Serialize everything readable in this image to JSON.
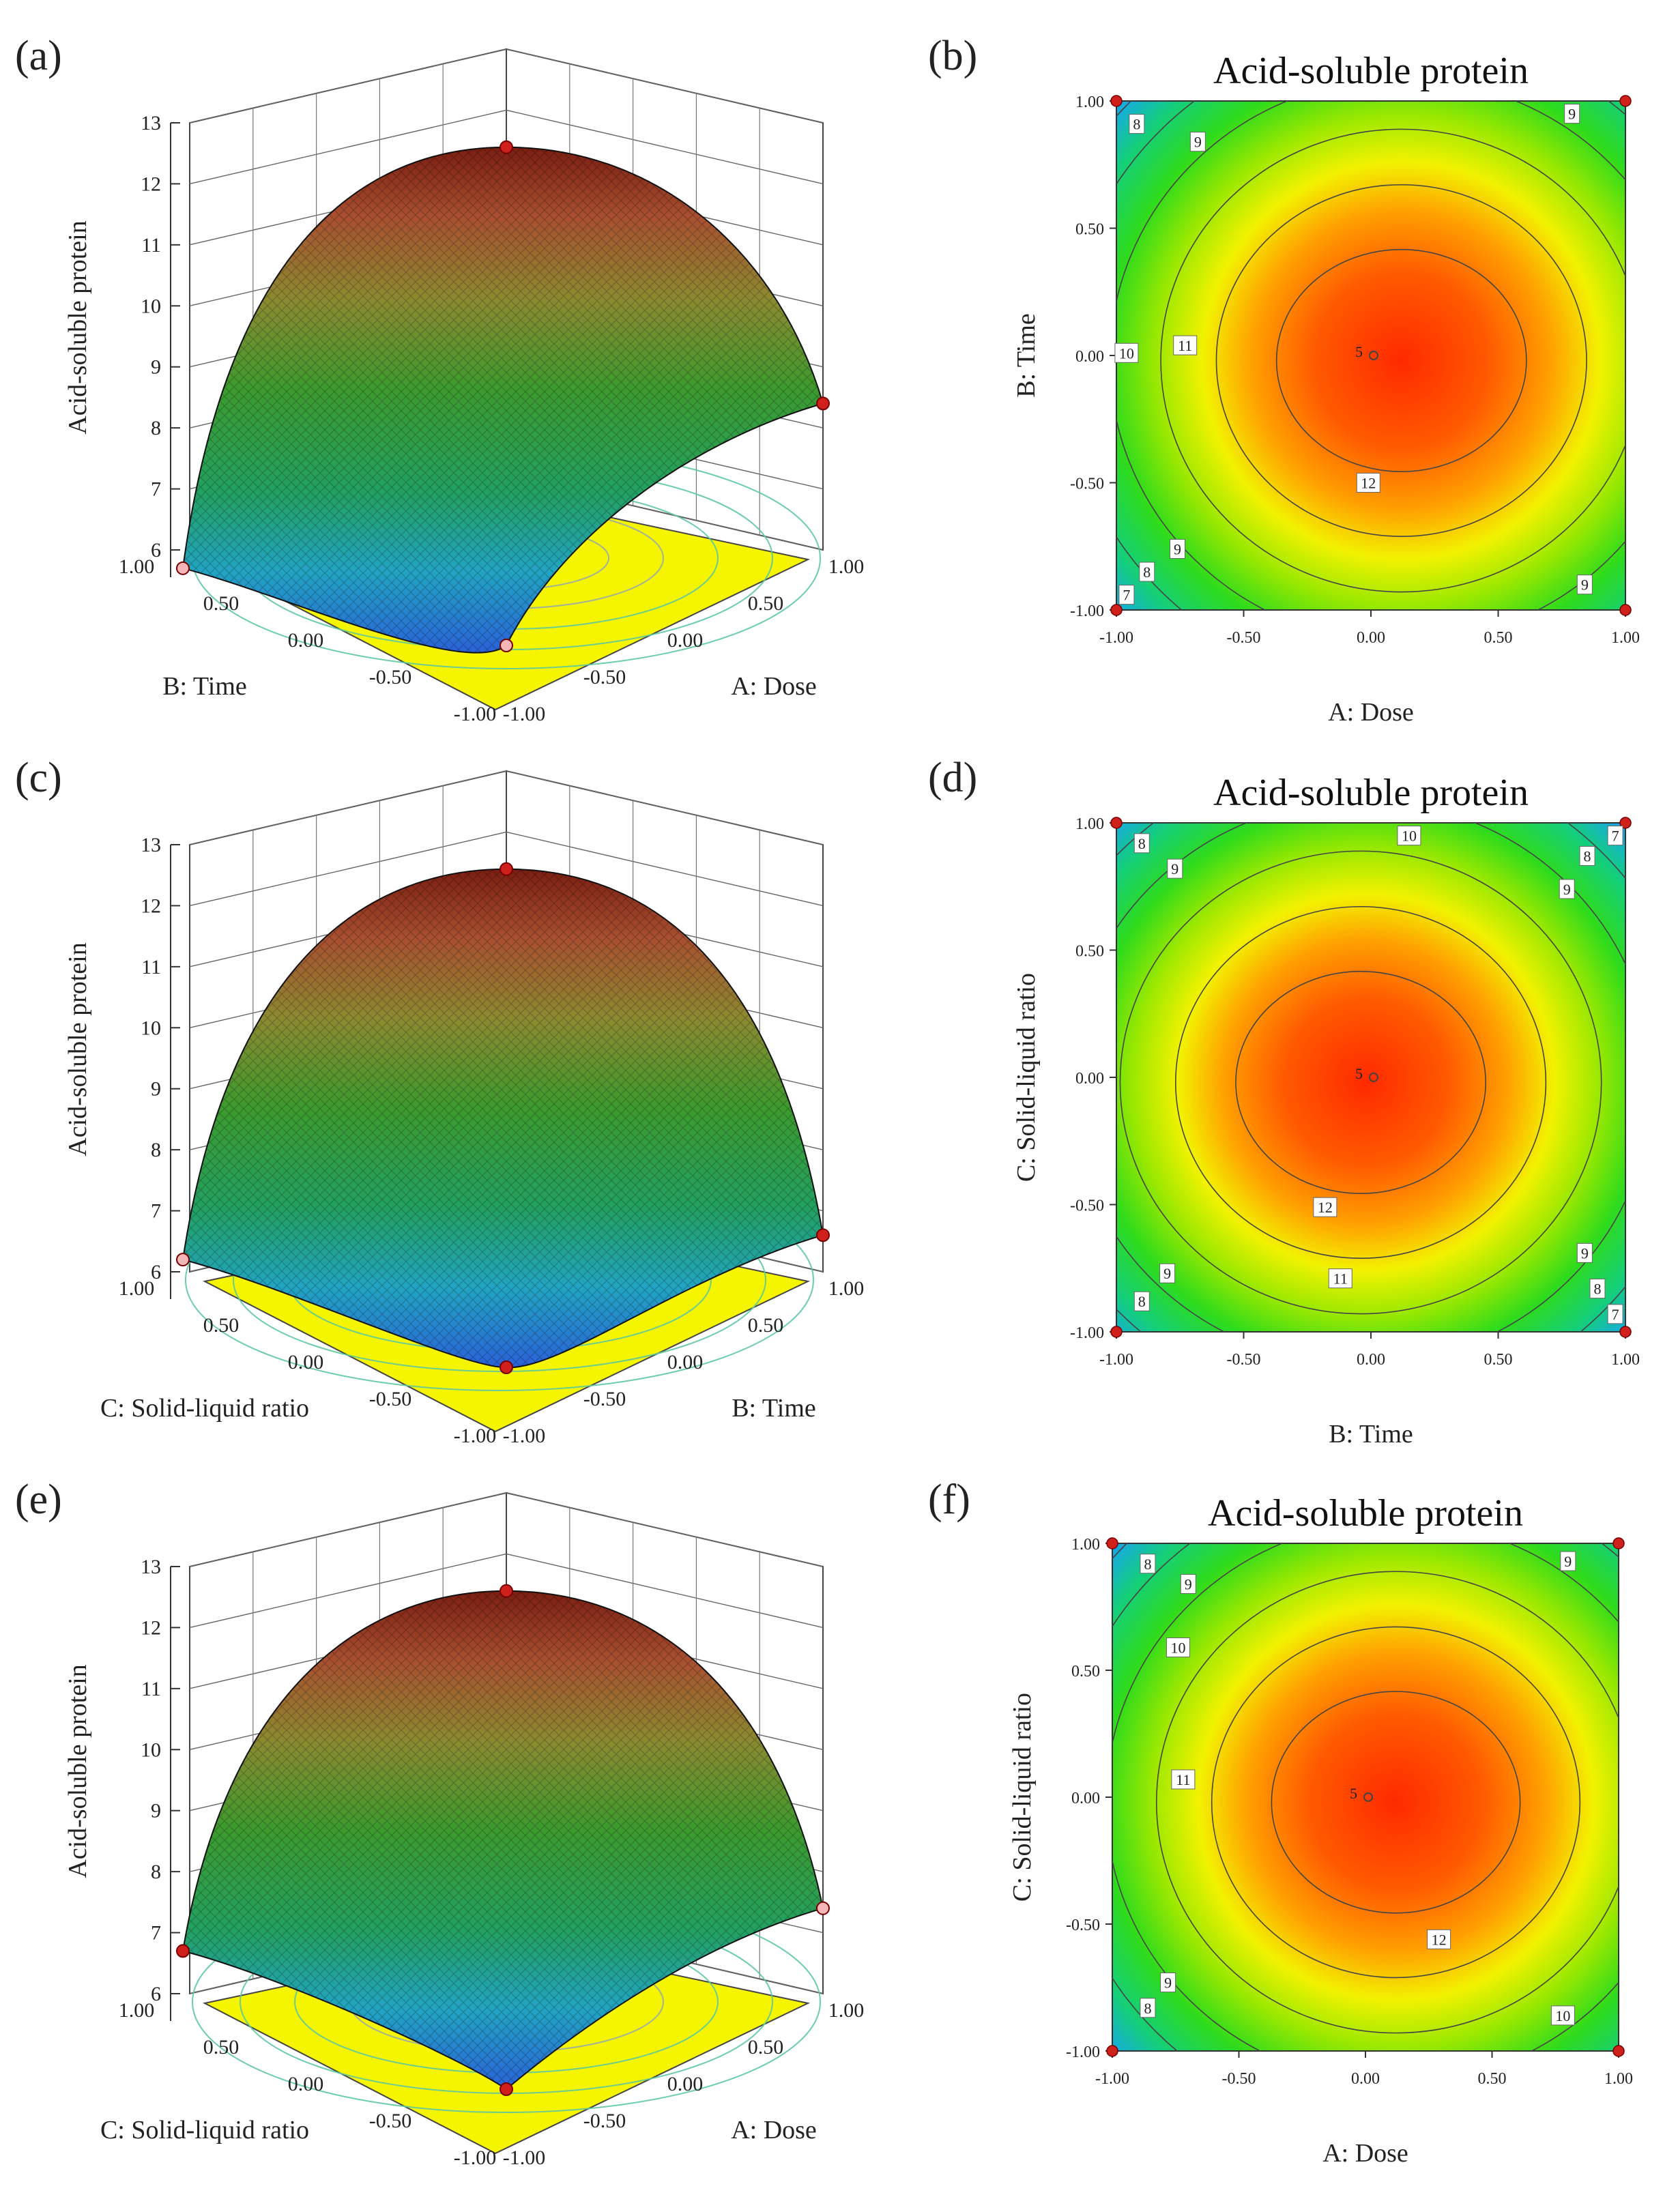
{
  "panel_labels": [
    "(a)",
    "(b)",
    "(c)",
    "(d)",
    "(e)",
    "(f)"
  ],
  "chart_data": [
    {
      "type": "surface3d",
      "panel": "(a)",
      "zlabel": "Acid-soluble protein",
      "z_ticks": [
        "13",
        "12",
        "11",
        "10",
        "9",
        "8",
        "7",
        "6"
      ],
      "zlim": [
        6,
        13
      ],
      "left_axis_label": "B: Time",
      "right_axis_label": "A: Dose",
      "axis_ticks": [
        "1.00",
        "0.50",
        "0.00",
        "-0.50",
        "-1.00"
      ],
      "peak_value": 12.6,
      "corner_values": [
        5.7,
        8.4
      ]
    },
    {
      "type": "contour",
      "panel": "(b)",
      "title": "Acid-soluble protein",
      "xlabel": "A: Dose",
      "ylabel": "B: Time",
      "x_ticks": [
        "-1.00",
        "-0.50",
        "0.00",
        "0.50",
        "1.00"
      ],
      "y_ticks": [
        "1.00",
        "0.50",
        "0.00",
        "-0.50",
        "-1.00"
      ],
      "xlim": [
        -1,
        1
      ],
      "ylim": [
        -1,
        1
      ],
      "center_label": "5",
      "center_point": [
        0.0,
        0.0
      ],
      "optimum": [
        0.12,
        -0.02
      ],
      "contour_labels": [
        {
          "text": "8",
          "x": -0.92,
          "y": 0.91
        },
        {
          "text": "9",
          "x": -0.68,
          "y": 0.84
        },
        {
          "text": "9",
          "x": 0.79,
          "y": 0.95
        },
        {
          "text": "10",
          "x": -0.96,
          "y": 0.01
        },
        {
          "text": "11",
          "x": -0.73,
          "y": 0.04
        },
        {
          "text": "12",
          "x": -0.01,
          "y": -0.5
        },
        {
          "text": "9",
          "x": -0.76,
          "y": -0.76
        },
        {
          "text": "8",
          "x": -0.88,
          "y": -0.85
        },
        {
          "text": "7",
          "x": -0.96,
          "y": -0.94
        },
        {
          "text": "9",
          "x": 0.84,
          "y": -0.9
        }
      ]
    },
    {
      "type": "surface3d",
      "panel": "(c)",
      "zlabel": "Acid-soluble protein",
      "z_ticks": [
        "13",
        "12",
        "11",
        "10",
        "9",
        "8",
        "7",
        "6"
      ],
      "zlim": [
        6,
        13
      ],
      "left_axis_label": "C: Solid-liquid ratio",
      "right_axis_label": "B: Time",
      "axis_ticks": [
        "1.00",
        "0.50",
        "0.00",
        "-0.50",
        "-1.00"
      ],
      "peak_value": 12.6,
      "corner_values": [
        6.2,
        6.6
      ]
    },
    {
      "type": "contour",
      "panel": "(d)",
      "title": "Acid-soluble protein",
      "xlabel": "B: Time",
      "ylabel": "C: Solid-liquid ratio",
      "x_ticks": [
        "-1.00",
        "-0.50",
        "0.00",
        "0.50",
        "1.00"
      ],
      "y_ticks": [
        "1.00",
        "0.50",
        "0.00",
        "-0.50",
        "-1.00"
      ],
      "xlim": [
        -1,
        1
      ],
      "ylim": [
        -1,
        1
      ],
      "center_label": "5",
      "center_point": [
        0.0,
        0.0
      ],
      "optimum": [
        -0.04,
        -0.02
      ],
      "contour_labels": [
        {
          "text": "8",
          "x": -0.9,
          "y": 0.92
        },
        {
          "text": "9",
          "x": -0.77,
          "y": 0.82
        },
        {
          "text": "10",
          "x": 0.15,
          "y": 0.95
        },
        {
          "text": "7",
          "x": 0.96,
          "y": 0.95
        },
        {
          "text": "8",
          "x": 0.85,
          "y": 0.87
        },
        {
          "text": "9",
          "x": 0.77,
          "y": 0.74
        },
        {
          "text": "12",
          "x": -0.18,
          "y": -0.51
        },
        {
          "text": "11",
          "x": -0.12,
          "y": -0.79
        },
        {
          "text": "9",
          "x": -0.8,
          "y": -0.77
        },
        {
          "text": "8",
          "x": -0.9,
          "y": -0.88
        },
        {
          "text": "9",
          "x": 0.84,
          "y": -0.69
        },
        {
          "text": "8",
          "x": 0.89,
          "y": -0.83
        },
        {
          "text": "7",
          "x": 0.96,
          "y": -0.93
        }
      ]
    },
    {
      "type": "surface3d",
      "panel": "(e)",
      "zlabel": "Acid-soluble protein",
      "z_ticks": [
        "13",
        "12",
        "11",
        "10",
        "9",
        "8",
        "7",
        "6"
      ],
      "zlim": [
        6,
        13
      ],
      "left_axis_label": "C: Solid-liquid ratio",
      "right_axis_label": "A: Dose",
      "axis_ticks": [
        "1.00",
        "0.50",
        "0.00",
        "-0.50",
        "-1.00"
      ],
      "peak_value": 12.6,
      "corner_values": [
        6.7,
        7.4
      ]
    },
    {
      "type": "contour",
      "panel": "(f)",
      "title": "Acid-soluble protein",
      "xlabel": "A: Dose",
      "ylabel": "C: Solid-liquid ratio",
      "x_ticks": [
        "-1.00",
        "-0.50",
        "0.00",
        "0.50",
        "1.00"
      ],
      "y_ticks": [
        "1.00",
        "0.50",
        "0.00",
        "-0.50",
        "-1.00"
      ],
      "xlim": [
        -1,
        1
      ],
      "ylim": [
        -1,
        1
      ],
      "center_label": "5",
      "center_point": [
        0.0,
        0.0
      ],
      "optimum": [
        0.12,
        -0.02
      ],
      "contour_labels": [
        {
          "text": "8",
          "x": -0.86,
          "y": 0.92
        },
        {
          "text": "9",
          "x": 0.8,
          "y": 0.93
        },
        {
          "text": "9",
          "x": -0.7,
          "y": 0.84
        },
        {
          "text": "10",
          "x": -0.74,
          "y": 0.59
        },
        {
          "text": "11",
          "x": -0.72,
          "y": 0.07
        },
        {
          "text": "12",
          "x": 0.29,
          "y": -0.56
        },
        {
          "text": "9",
          "x": -0.78,
          "y": -0.73
        },
        {
          "text": "8",
          "x": -0.86,
          "y": -0.83
        },
        {
          "text": "10",
          "x": 0.78,
          "y": -0.86
        }
      ]
    }
  ]
}
